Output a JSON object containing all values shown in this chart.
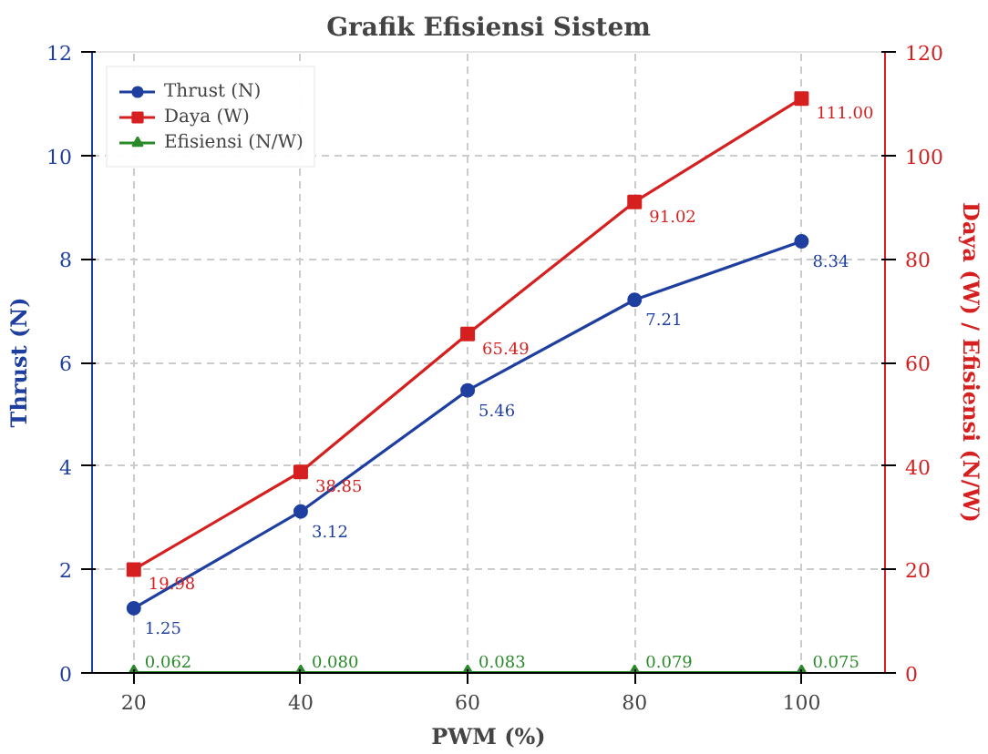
{
  "chart_data": {
    "type": "line",
    "title": "Grafik Efisiensi Sistem",
    "xlabel": "PWM (%)",
    "ylabel": "Thrust (N)",
    "y2label": "Daya (W) / Efisiensi (N/W)",
    "x": [
      20,
      40,
      60,
      80,
      100
    ],
    "xlim": [
      15,
      110
    ],
    "xticks": [
      20,
      40,
      60,
      80,
      100
    ],
    "ylim": [
      0,
      12
    ],
    "yticks": [
      0,
      2,
      4,
      6,
      8,
      10,
      12
    ],
    "y2lim": [
      0,
      120
    ],
    "y2ticks": [
      0,
      20,
      40,
      60,
      80,
      100,
      120
    ],
    "series": [
      {
        "name": "Thrust (N)",
        "color": "#1f3fa0",
        "marker": "circle",
        "values": [
          1.25,
          3.12,
          5.46,
          7.21,
          8.34
        ],
        "value_labels": [
          "1.25",
          "3.12",
          "5.46",
          "7.21",
          "8.34"
        ]
      },
      {
        "name": "Daya (W)",
        "color": "#d62020",
        "marker": "square",
        "axis": "y2",
        "values": [
          19.98,
          38.85,
          65.49,
          91.02,
          111.0
        ],
        "value_labels": [
          "19.98",
          "38.85",
          "65.49",
          "91.02",
          "111.00"
        ]
      },
      {
        "name": "Efisiensi (N/W)",
        "color": "#2a8a2a",
        "marker": "triangle",
        "axis": "y2",
        "values": [
          0.062,
          0.08,
          0.083,
          0.079,
          0.075
        ],
        "value_labels": [
          "0.062",
          "0.080",
          "0.083",
          "0.079",
          "0.075"
        ]
      }
    ],
    "grid": true,
    "legend": "top left",
    "line_style": "solid"
  }
}
